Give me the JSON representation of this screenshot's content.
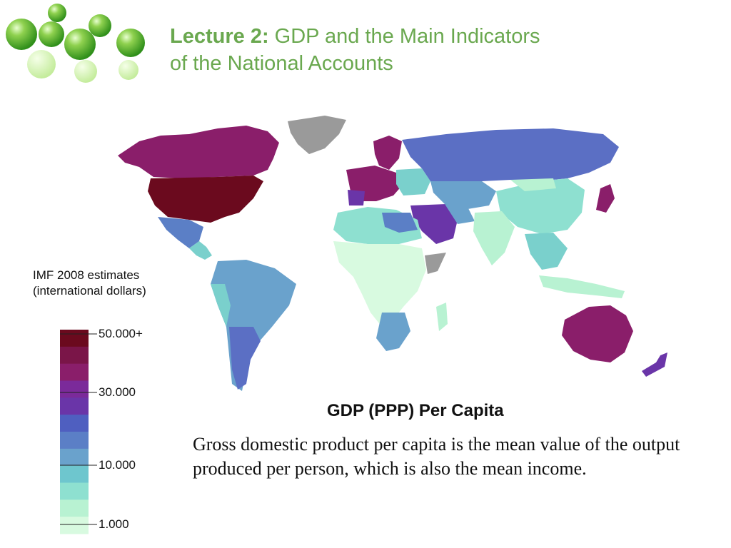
{
  "slide": {
    "title_bold": "Lecture 2:",
    "title_rest": " GDP and the Main Indicators",
    "title_line2": "of the National Accounts"
  },
  "legend": {
    "line1": "IMF 2008 estimates",
    "line2": "(international  dollars)",
    "labels": [
      "50.000+",
      "30.000",
      "10.000",
      "1.000"
    ],
    "colors": [
      "#6b0a1e",
      "#7a1548",
      "#8a1e6a",
      "#7b2a9a",
      "#6a35a8",
      "#4f5fc0",
      "#5b7fc6",
      "#6aa2cc",
      "#6ec6ce",
      "#8ee0d0",
      "#b8f2d2",
      "#d8fae0"
    ]
  },
  "map": {
    "colors": {
      "very_high": "#6b0a1e",
      "high": "#8a1e6a",
      "upper_mid": "#6a35a8",
      "mid": "#5b6fc4",
      "lower_mid": "#6aa2cc",
      "low_mid": "#7ad0cc",
      "low": "#b8f2d2",
      "no_data": "#9a9a9a"
    }
  },
  "subtitle": "GDP (PPP) Per Capita",
  "description": "Gross domestic product per capita is the mean value of the output produced per person, which is also the mean income."
}
